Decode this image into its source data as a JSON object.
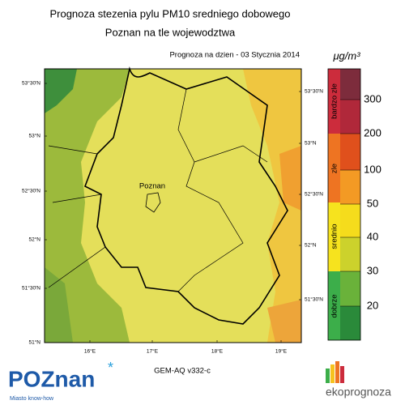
{
  "header": {
    "title": "Prognoza stezenia pylu PM10 sredniego dobowego",
    "subtitle": "Poznan na tle wojewodztwa",
    "date_label": "Prognoza na dzien -  03 Stycznia 2014"
  },
  "map": {
    "city_label": "Poznan",
    "left_lat_labels": [
      "53°30'N",
      "53°N",
      "52°30'N",
      "52°N",
      "51°30'N",
      "51°N"
    ],
    "right_lat_labels": [
      "53°30'N",
      "53°N",
      "52°30'N",
      "52°N",
      "51°30'N"
    ],
    "lon_labels": [
      "16°E",
      "17°E",
      "18°E",
      "19°E"
    ],
    "model_label": "GEM-AQ v332-c"
  },
  "legend": {
    "unit": "μg/m³",
    "ticks": [
      "300",
      "200",
      "100",
      "50",
      "40",
      "30",
      "20"
    ],
    "categories": [
      "bardzo zle",
      "zle",
      "srednio",
      "dobrze"
    ]
  },
  "footer": {
    "city_logo": "POZnan",
    "city_tagline": "Miasto know-how",
    "brand": "ekoprognoza"
  }
}
